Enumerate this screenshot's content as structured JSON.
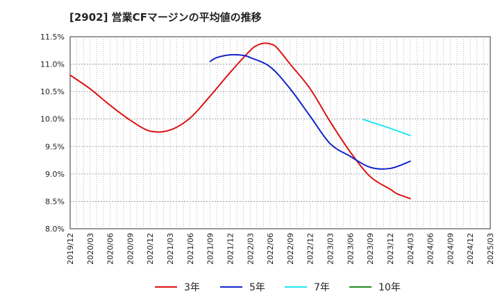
{
  "chart_data": {
    "type": "line",
    "title": "[2902]  営業CFマージンの平均値の推移",
    "xlabel": "",
    "ylabel": "",
    "ylim": [
      8.0,
      11.5
    ],
    "y_ticks": [
      "11.5%",
      "11.0%",
      "10.5%",
      "10.0%",
      "9.5%",
      "9.0%",
      "8.5%",
      "8.0%"
    ],
    "x_ticks": [
      "2019/12",
      "2020/03",
      "2020/06",
      "2020/09",
      "2020/12",
      "2021/03",
      "2021/06",
      "2021/09",
      "2021/12",
      "2022/03",
      "2022/06",
      "2022/09",
      "2022/12",
      "2023/03",
      "2023/06",
      "2023/09",
      "2023/12",
      "2024/03",
      "2024/06",
      "2024/09",
      "2024/12",
      "2025/03"
    ],
    "x_range": [
      "2019/12",
      "2025/03"
    ],
    "grid": true,
    "legend_position": "bottom",
    "series": [
      {
        "name": "3年",
        "color": "#dd1111",
        "points": [
          [
            "2019/12",
            10.8
          ],
          [
            "2020/03",
            10.55
          ],
          [
            "2020/06",
            10.25
          ],
          [
            "2020/09",
            9.98
          ],
          [
            "2020/12",
            9.78
          ],
          [
            "2021/03",
            9.8
          ],
          [
            "2021/06",
            10.02
          ],
          [
            "2021/09",
            10.42
          ],
          [
            "2021/12",
            10.85
          ],
          [
            "2022/03",
            11.25
          ],
          [
            "2022/04",
            11.34
          ],
          [
            "2022/05",
            11.38
          ],
          [
            "2022/06",
            11.37
          ],
          [
            "2022/07",
            11.3
          ],
          [
            "2022/09",
            11.0
          ],
          [
            "2022/12",
            10.55
          ],
          [
            "2023/03",
            9.95
          ],
          [
            "2023/06",
            9.4
          ],
          [
            "2023/09",
            8.95
          ],
          [
            "2023/12",
            8.72
          ],
          [
            "2024/01",
            8.64
          ],
          [
            "2024/03",
            8.55
          ]
        ]
      },
      {
        "name": "5年",
        "color": "#1122cc",
        "points": [
          [
            "2021/09",
            11.05
          ],
          [
            "2021/10",
            11.12
          ],
          [
            "2021/12",
            11.17
          ],
          [
            "2022/02",
            11.16
          ],
          [
            "2022/03",
            11.12
          ],
          [
            "2022/06",
            10.95
          ],
          [
            "2022/09",
            10.55
          ],
          [
            "2022/12",
            10.05
          ],
          [
            "2023/03",
            9.55
          ],
          [
            "2023/06",
            9.32
          ],
          [
            "2023/09",
            9.12
          ],
          [
            "2023/12",
            9.1
          ],
          [
            "2024/03",
            9.23
          ]
        ]
      },
      {
        "name": "7年",
        "color": "#22e5ee",
        "points": [
          [
            "2023/08",
            9.99
          ],
          [
            "2023/09",
            9.95
          ],
          [
            "2023/12",
            9.83
          ],
          [
            "2024/03",
            9.7
          ]
        ]
      },
      {
        "name": "10年",
        "color": "#228822",
        "points": []
      }
    ]
  }
}
